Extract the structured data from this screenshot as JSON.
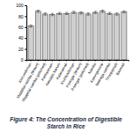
{
  "chart_data": {
    "type": "bar",
    "title": "Figure 4: The Concentration of Digestible Starch in Rice",
    "categories": [
      "Kuli vedichan",
      "Mappillai samba (brown)",
      "Mappillai samba (polished)",
      "Kattuyanam",
      "Karuppu kavuni",
      "Kalanamak",
      "Kuzhiyadichan",
      "Poongar (brown)",
      "Poongar (polished)",
      "Navara",
      "Karunguruvai",
      "Seeraga samba",
      "Thooyamalli",
      "Basmati"
    ],
    "values": [
      62,
      89,
      84,
      83,
      85,
      85,
      87,
      86,
      84,
      87,
      89,
      85,
      84,
      88
    ],
    "errors": [
      2,
      2,
      2,
      2,
      2,
      2,
      2,
      2,
      2,
      2,
      2,
      2,
      2,
      2
    ],
    "color": "#d0d0d0",
    "ylim": [
      0,
      100
    ],
    "yticks": [
      0,
      20,
      40,
      60,
      80,
      100
    ],
    "grid": false
  }
}
